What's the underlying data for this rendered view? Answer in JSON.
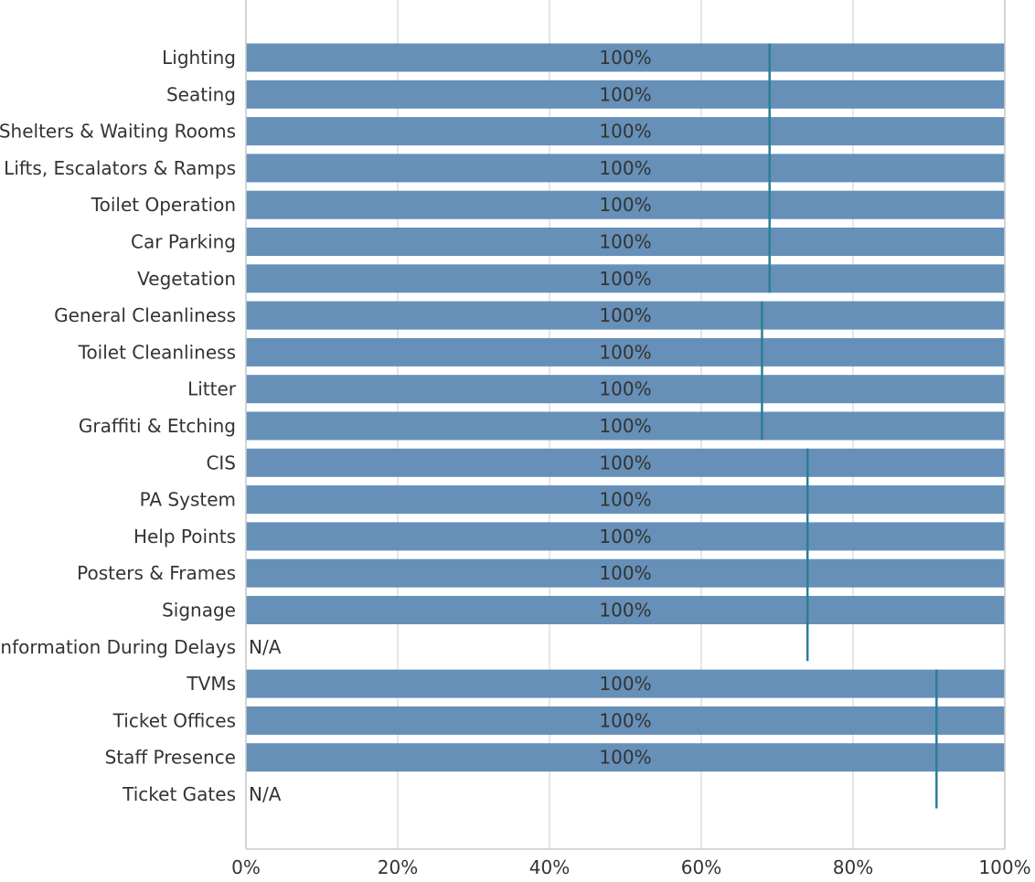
{
  "chart_data": {
    "type": "bar",
    "orientation": "horizontal",
    "title": "",
    "xlabel": "",
    "ylabel": "",
    "xlim": [
      0,
      100
    ],
    "x_ticks": [
      0,
      20,
      40,
      60,
      80,
      100
    ],
    "x_tick_labels": [
      "0%",
      "20%",
      "40%",
      "60%",
      "80%",
      "100%"
    ],
    "grid": "vertical",
    "colors": {
      "bar": "#6690b8",
      "benchmark": "#2a7f96",
      "grid": "#dddddd",
      "axis": "#cccccc",
      "text": "#333333"
    },
    "categories": [
      "Lighting",
      "Seating",
      "Shelters & Waiting Rooms",
      "Lifts, Escalators & Ramps",
      "Toilet Operation",
      "Car Parking",
      "Vegetation",
      "General Cleanliness",
      "Toilet Cleanliness",
      "Litter",
      "Graffiti & Etching",
      "CIS",
      "PA System",
      "Help Points",
      "Posters & Frames",
      "Signage",
      "Information During Delays",
      "TVMs",
      "Ticket Offices",
      "Staff Presence",
      "Ticket Gates"
    ],
    "values": [
      100,
      100,
      100,
      100,
      100,
      100,
      100,
      100,
      100,
      100,
      100,
      100,
      100,
      100,
      100,
      100,
      null,
      100,
      100,
      100,
      null
    ],
    "value_labels": [
      "100%",
      "100%",
      "100%",
      "100%",
      "100%",
      "100%",
      "100%",
      "100%",
      "100%",
      "100%",
      "100%",
      "100%",
      "100%",
      "100%",
      "100%",
      "100%",
      "N/A",
      "100%",
      "100%",
      "100%",
      "N/A"
    ],
    "benchmarks": [
      {
        "value": 69,
        "categories": [
          "Lighting",
          "Seating",
          "Shelters & Waiting Rooms",
          "Lifts, Escalators & Ramps",
          "Toilet Operation",
          "Car Parking",
          "Vegetation"
        ]
      },
      {
        "value": 68,
        "categories": [
          "General Cleanliness",
          "Toilet Cleanliness",
          "Litter",
          "Graffiti & Etching"
        ]
      },
      {
        "value": 74,
        "categories": [
          "CIS",
          "PA System",
          "Help Points",
          "Posters & Frames",
          "Signage",
          "Information During Delays"
        ]
      },
      {
        "value": 91,
        "categories": [
          "TVMs",
          "Ticket Offices",
          "Staff Presence",
          "Ticket Gates"
        ]
      }
    ]
  }
}
